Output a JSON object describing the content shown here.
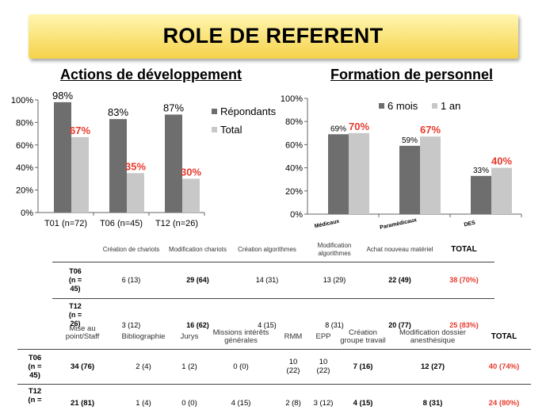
{
  "banner": {
    "title": "ROLE DE REFERENT"
  },
  "left_chart_title": "Actions de développement",
  "right_chart_title": "Formation de personnel",
  "chart_data": [
    {
      "type": "bar",
      "title": "Actions de développement",
      "categories": [
        "T01 (n=72)",
        "T06 (n=45)",
        "T12 (n=26)"
      ],
      "series": [
        {
          "name": "Répondants",
          "values": [
            98,
            83,
            87
          ],
          "labels": [
            "98%",
            "83%",
            "87%"
          ],
          "color": "#6e6e6e"
        },
        {
          "name": "Total",
          "values": [
            67,
            35,
            30
          ],
          "labels": [
            "67%",
            "35%",
            "30%"
          ],
          "color": "#c8c8c8"
        }
      ],
      "ylim": [
        0,
        100
      ],
      "yticks": [
        "0%",
        "20%",
        "40%",
        "60%",
        "80%",
        "100%"
      ],
      "legend": "right"
    },
    {
      "type": "bar",
      "title": "Formation de personnel",
      "categories": [
        "Médicaux",
        "Paramédicaux",
        "DES"
      ],
      "series": [
        {
          "name": "6 mois",
          "values": [
            69,
            59,
            33
          ],
          "labels": [
            "69%",
            "59%",
            "33%"
          ],
          "color": "#6e6e6e"
        },
        {
          "name": "1 an",
          "values": [
            70,
            67,
            40
          ],
          "labels": [
            "70%",
            "67%",
            "40%"
          ],
          "color": "#c8c8c8"
        }
      ],
      "ylim": [
        0,
        100
      ],
      "yticks": [
        "0%",
        "20%",
        "40%",
        "60%",
        "80%",
        "100%"
      ],
      "legend": "top"
    }
  ],
  "table1": {
    "headers": [
      "Création de chariots",
      "Modification chariots",
      "Création algorithmes",
      "Modification algorithmes",
      "Achat nouveau matériel",
      "TOTAL"
    ],
    "rows": [
      {
        "label": "T06\n(n =\n45)",
        "cells": [
          "6 (13)",
          "29 (64)",
          "14 (31)",
          "13 (29)",
          "22 (49)",
          "38 (70%)"
        ]
      },
      {
        "label": "T12\n(n =\n26)",
        "cells": [
          "3 (12)",
          "16 (62)",
          "4 (15)",
          "8 (31)",
          "20 (77)",
          "25 (83%)"
        ]
      }
    ]
  },
  "table2": {
    "headers": [
      "Mise au point/Staff",
      "Bibliographie",
      "Jurys",
      "Missions intérêts générales",
      "RMM",
      "EPP",
      "Création groupe travail",
      "Modification dossier anesthésique",
      "TOTAL"
    ],
    "rows": [
      {
        "label": "T06\n(n =\n45)",
        "cells": [
          "34 (76)",
          "2 (4)",
          "1 (2)",
          "0 (0)",
          "10\n(22)",
          "10\n(22)",
          "7 (16)",
          "12 (27)",
          "40 (74%)"
        ]
      },
      {
        "label": "T12\n(n =",
        "cells": [
          "21 (81)",
          "1 (4)",
          "0 (0)",
          "4 (15)",
          "2 (8)",
          "3 (12)",
          "4 (15)",
          "8 (31)",
          "24 (80%)"
        ]
      }
    ]
  }
}
